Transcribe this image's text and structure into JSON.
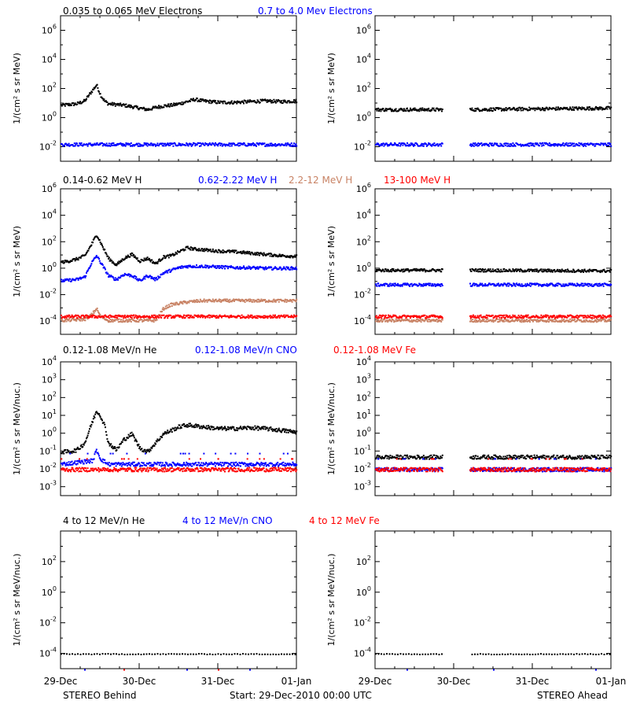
{
  "footer": {
    "left_label": "STEREO Behind",
    "center_label": "Start: 29-Dec-2010 00:00 UTC",
    "right_label": "STEREO Ahead"
  },
  "x_ticks": [
    "29-Dec",
    "30-Dec",
    "31-Dec",
    "01-Jan"
  ],
  "colors": {
    "black": "#000000",
    "blue": "#0000ff",
    "tan": "#c88264",
    "red": "#ff0000"
  },
  "rows": [
    {
      "ylabel": "1/(cm² s sr MeV)",
      "legend": [
        {
          "text": "0.035 to 0.065 MeV Electrons",
          "color": "#000000"
        },
        {
          "text": "0.7 to 4.0 Mev Electrons",
          "color": "#0000ff"
        }
      ],
      "yrange": [
        -3,
        7
      ],
      "ytick_exps": [
        -2,
        0,
        2,
        4,
        6
      ]
    },
    {
      "ylabel": "1/(cm² s sr MeV)",
      "legend": [
        {
          "text": "0.14-0.62 MeV H",
          "color": "#000000"
        },
        {
          "text": "0.62-2.22 MeV H",
          "color": "#0000ff"
        },
        {
          "text": "2.2-12 MeV H",
          "color": "#c88264"
        },
        {
          "text": "13-100 MeV H",
          "color": "#ff0000"
        }
      ],
      "yrange": [
        -5,
        6
      ],
      "ytick_exps": [
        -4,
        -2,
        0,
        2,
        4,
        6
      ]
    },
    {
      "ylabel": "1/(cm² s sr MeV/nuc.)",
      "legend": [
        {
          "text": "0.12-1.08 MeV/n He",
          "color": "#000000"
        },
        {
          "text": "0.12-1.08 MeV/n CNO",
          "color": "#0000ff"
        },
        {
          "text": "0.12-1.08 MeV Fe",
          "color": "#ff0000"
        }
      ],
      "yrange": [
        -3.5,
        4
      ],
      "ytick_exps": [
        -3,
        -2,
        -1,
        0,
        1,
        2,
        3,
        4
      ]
    },
    {
      "ylabel": "1/(cm² s sr MeV/nuc.)",
      "legend": [
        {
          "text": "4 to 12 MeV/n He",
          "color": "#000000"
        },
        {
          "text": "4 to 12 MeV/n CNO",
          "color": "#0000ff"
        },
        {
          "text": "4 to 12 MeV Fe",
          "color": "#ff0000"
        }
      ],
      "yrange": [
        -5,
        4
      ],
      "ytick_exps": [
        -4,
        -2,
        0,
        2
      ]
    }
  ],
  "chart_data": [
    {
      "type": "scatter",
      "panel": "Behind electrons",
      "xunit": "days since 29-Dec-2010",
      "ylog": true,
      "series": [
        {
          "name": "0.035 to 0.065 MeV Electrons",
          "color": "#000000",
          "x": [
            0,
            0.1,
            0.2,
            0.3,
            0.38,
            0.45,
            0.5,
            0.55,
            0.6,
            0.7,
            0.8,
            0.9,
            1.0,
            1.1,
            1.2,
            1.3,
            1.4,
            1.5,
            1.6,
            1.7,
            1.8,
            1.9,
            2.0,
            2.2,
            2.4,
            2.6,
            2.8,
            3.0
          ],
          "logy": [
            0.9,
            0.95,
            1.0,
            1.2,
            1.8,
            2.3,
            1.6,
            1.2,
            1.0,
            0.95,
            0.9,
            0.8,
            0.7,
            0.6,
            0.75,
            0.85,
            0.9,
            1.0,
            1.15,
            1.3,
            1.2,
            1.15,
            1.1,
            1.1,
            1.15,
            1.2,
            1.15,
            1.2
          ]
        },
        {
          "name": "0.7 to 4.0 Mev Electrons",
          "color": "#0000ff",
          "x": [
            0,
            0.5,
            1,
            1.5,
            2,
            2.5,
            3
          ],
          "logy": [
            -1.8,
            -1.8,
            -1.8,
            -1.8,
            -1.8,
            -1.8,
            -1.8
          ]
        }
      ]
    },
    {
      "type": "scatter",
      "panel": "Ahead electrons",
      "xunit": "days since 29-Dec-2010",
      "ylog": true,
      "data_gap": [
        0.85,
        1.2
      ],
      "series": [
        {
          "name": "0.035 to 0.065 MeV Electrons",
          "color": "#000000",
          "x": [
            0,
            0.5,
            0.85,
            1.2,
            2,
            3
          ],
          "logy": [
            0.6,
            0.6,
            0.6,
            0.6,
            0.65,
            0.7
          ]
        },
        {
          "name": "0.7 to 4.0 Mev Electrons",
          "color": "#0000ff",
          "x": [
            0,
            0.5,
            0.85,
            1.2,
            2,
            3
          ],
          "logy": [
            -1.8,
            -1.8,
            -1.8,
            -1.8,
            -1.8,
            -1.8
          ]
        }
      ]
    },
    {
      "type": "scatter",
      "panel": "Behind protons",
      "xunit": "days since 29-Dec-2010",
      "ylog": true,
      "series": [
        {
          "name": "0.14-0.62 MeV H",
          "color": "#000000",
          "x": [
            0,
            0.1,
            0.2,
            0.3,
            0.38,
            0.45,
            0.5,
            0.55,
            0.6,
            0.7,
            0.8,
            0.9,
            1.0,
            1.1,
            1.2,
            1.3,
            1.4,
            1.5,
            1.6,
            1.7,
            1.8,
            1.9,
            2.0,
            2.2,
            2.4,
            2.6,
            2.8,
            3.0
          ],
          "logy": [
            0.5,
            0.6,
            0.75,
            1.0,
            1.8,
            2.6,
            2.0,
            1.4,
            0.8,
            0.3,
            0.8,
            1.1,
            0.6,
            0.8,
            0.4,
            0.9,
            1.0,
            1.3,
            1.6,
            1.5,
            1.45,
            1.4,
            1.35,
            1.3,
            1.2,
            1.1,
            1.0,
            0.95
          ]
        },
        {
          "name": "0.62-2.22 MeV H",
          "color": "#0000ff",
          "x": [
            0,
            0.1,
            0.2,
            0.3,
            0.38,
            0.45,
            0.5,
            0.55,
            0.6,
            0.7,
            0.8,
            0.9,
            1.0,
            1.1,
            1.2,
            1.3,
            1.4,
            1.5,
            1.6,
            1.7,
            1.8,
            2.0,
            2.2,
            2.4,
            2.6,
            2.8,
            3.0
          ],
          "logy": [
            -0.9,
            -0.85,
            -0.8,
            -0.6,
            0.4,
            1.0,
            0.5,
            0.0,
            -0.5,
            -0.8,
            -0.4,
            -0.5,
            -0.9,
            -0.5,
            -0.8,
            -0.3,
            -0.1,
            0.1,
            0.2,
            0.2,
            0.2,
            0.15,
            0.1,
            0.1,
            0.05,
            0.05,
            0.05
          ]
        },
        {
          "name": "2.2-12 MeV H",
          "color": "#c88264",
          "x": [
            0,
            0.3,
            0.38,
            0.45,
            0.5,
            0.6,
            0.8,
            1.0,
            1.2,
            1.3,
            1.4,
            1.6,
            1.8,
            2.0,
            2.4,
            2.8,
            3.0
          ],
          "logy": [
            -3.9,
            -3.8,
            -3.5,
            -3.0,
            -3.6,
            -3.9,
            -3.9,
            -3.9,
            -3.9,
            -3.0,
            -2.7,
            -2.5,
            -2.4,
            -2.4,
            -2.4,
            -2.4,
            -2.4
          ]
        },
        {
          "name": "13-100 MeV H",
          "color": "#ff0000",
          "x": [
            0,
            0.5,
            1,
            1.5,
            2,
            2.5,
            3
          ],
          "logy": [
            -3.6,
            -3.6,
            -3.6,
            -3.6,
            -3.6,
            -3.6,
            -3.6
          ]
        }
      ]
    },
    {
      "type": "scatter",
      "panel": "Ahead protons",
      "xunit": "days since 29-Dec-2010",
      "ylog": true,
      "data_gap": [
        0.85,
        1.2
      ],
      "series": [
        {
          "name": "0.14-0.62 MeV H",
          "color": "#000000",
          "x": [
            0,
            0.85,
            1.2,
            3
          ],
          "logy": [
            -0.1,
            -0.1,
            -0.1,
            -0.15
          ]
        },
        {
          "name": "0.62-2.22 MeV H",
          "color": "#0000ff",
          "x": [
            0,
            0.85,
            1.2,
            3
          ],
          "logy": [
            -1.2,
            -1.2,
            -1.2,
            -1.2
          ]
        },
        {
          "name": "2.2-12 MeV H",
          "color": "#c88264",
          "x": [
            0,
            0.85,
            1.2,
            3
          ],
          "logy": [
            -3.9,
            -3.9,
            -3.9,
            -3.9
          ]
        },
        {
          "name": "13-100 MeV H",
          "color": "#ff0000",
          "x": [
            0,
            0.85,
            1.2,
            3
          ],
          "logy": [
            -3.6,
            -3.6,
            -3.6,
            -3.6
          ]
        }
      ]
    },
    {
      "type": "scatter",
      "panel": "Behind heavy ions low",
      "xunit": "days since 29-Dec-2010",
      "ylog": true,
      "series": [
        {
          "name": "0.12-1.08 MeV/n He",
          "color": "#000000",
          "x": [
            0,
            0.1,
            0.2,
            0.3,
            0.38,
            0.45,
            0.5,
            0.55,
            0.6,
            0.7,
            0.8,
            0.9,
            1.0,
            1.1,
            1.2,
            1.3,
            1.4,
            1.5,
            1.6,
            1.8,
            2.0,
            2.2,
            2.4,
            2.6,
            2.8,
            3.0
          ],
          "logy": [
            -1.0,
            -1.0,
            -0.9,
            -0.5,
            0.5,
            1.3,
            1.0,
            0.5,
            -0.5,
            -0.9,
            -0.3,
            0.0,
            -0.8,
            -1.0,
            -0.5,
            0.0,
            0.2,
            0.4,
            0.5,
            0.4,
            0.3,
            0.3,
            0.35,
            0.3,
            0.2,
            0.1
          ]
        },
        {
          "name": "0.12-1.08 MeV/n CNO",
          "color": "#0000ff",
          "x": [
            0,
            0.4,
            0.45,
            0.5,
            0.6,
            1,
            2,
            3
          ],
          "logy": [
            -1.7,
            -1.5,
            -0.9,
            -1.4,
            -1.7,
            -1.7,
            -1.7,
            -1.7
          ]
        },
        {
          "name": "0.12-1.08 MeV Fe",
          "color": "#ff0000",
          "x": [
            0,
            1,
            2,
            3
          ],
          "logy": [
            -2.0,
            -2.0,
            -2.0,
            -2.0
          ]
        }
      ]
    },
    {
      "type": "scatter",
      "panel": "Ahead heavy ions low",
      "xunit": "days since 29-Dec-2010",
      "ylog": true,
      "data_gap": [
        0.85,
        1.2
      ],
      "series": [
        {
          "name": "0.12-1.08 MeV/n He",
          "color": "#000000",
          "x": [
            0,
            0.85,
            1.2,
            3
          ],
          "logy": [
            -1.3,
            -1.3,
            -1.3,
            -1.3
          ]
        },
        {
          "name": "0.12-1.08 MeV/n CNO",
          "color": "#0000ff",
          "x": [
            0,
            0.85,
            1.2,
            3
          ],
          "logy": [
            -2.0,
            -2.0,
            -2.0,
            -2.0
          ]
        },
        {
          "name": "0.12-1.08 MeV Fe",
          "color": "#ff0000",
          "x": [
            0,
            0.85,
            1.2,
            3
          ],
          "logy": [
            -2.0,
            -2.0,
            -2.0,
            -2.0
          ]
        }
      ]
    },
    {
      "type": "scatter",
      "panel": "Behind heavy ions high",
      "xunit": "days since 29-Dec-2010",
      "ylog": true,
      "series": [
        {
          "name": "4 to 12 MeV/n He",
          "color": "#000000",
          "x": [
            0,
            1,
            2,
            3
          ],
          "logy": [
            -4.0,
            -4.0,
            -4.0,
            -4.0
          ]
        },
        {
          "name": "4 to 12 MeV/n CNO",
          "color": "#0000ff",
          "x": [
            0.3,
            1.6,
            2.4
          ],
          "logy": [
            -4.0,
            -4.0,
            -4.0
          ]
        },
        {
          "name": "4 to 12 MeV Fe",
          "color": "#ff0000",
          "x": [
            0.8,
            2.0
          ],
          "logy": [
            -4.0,
            -4.0
          ]
        }
      ]
    },
    {
      "type": "scatter",
      "panel": "Ahead heavy ions high",
      "xunit": "days since 29-Dec-2010",
      "ylog": true,
      "data_gap": [
        0.85,
        1.2
      ],
      "series": [
        {
          "name": "4 to 12 MeV/n He",
          "color": "#000000",
          "x": [
            0,
            0.85,
            1.2,
            3
          ],
          "logy": [
            -4.0,
            -4.0,
            -4.0,
            -4.0
          ]
        },
        {
          "name": "4 to 12 MeV/n CNO",
          "color": "#0000ff",
          "x": [
            0.4,
            1.5,
            2.8
          ],
          "logy": [
            -4.0,
            -4.0,
            -4.0
          ]
        },
        {
          "name": "4 to 12 MeV Fe",
          "color": "#ff0000",
          "x": [],
          "logy": []
        }
      ]
    }
  ]
}
